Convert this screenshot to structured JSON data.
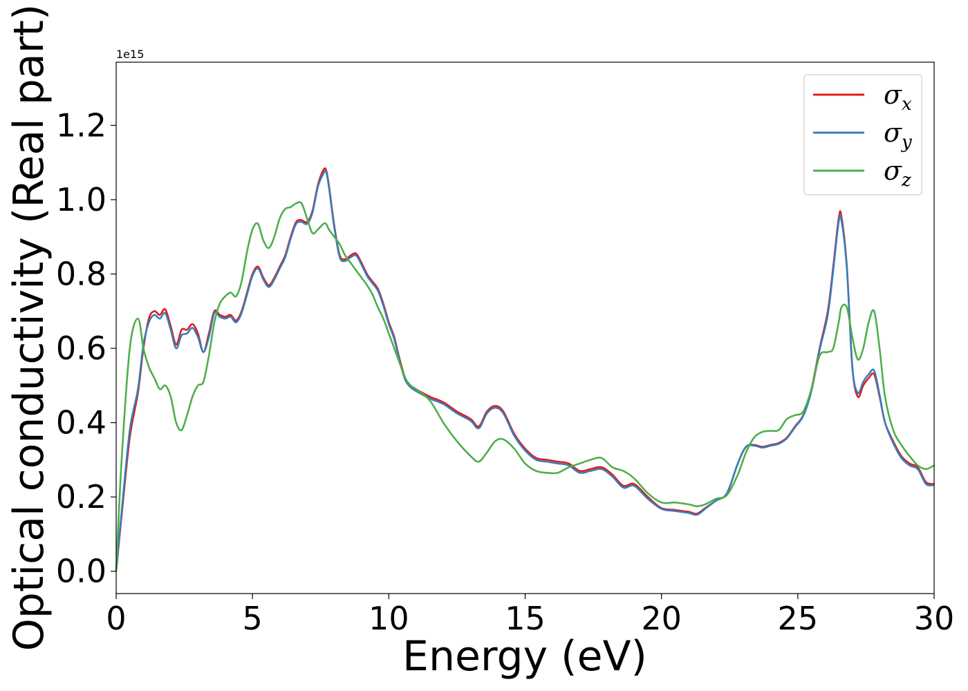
{
  "chart_data": {
    "type": "line",
    "title": "",
    "xlabel": "Energy (eV)",
    "ylabel": "Optical conductivity (Real part)",
    "offset_label": "1e15",
    "xlim": [
      0,
      30
    ],
    "ylim": [
      -0.06,
      1.37
    ],
    "x_ticks": [
      0,
      5,
      10,
      15,
      20,
      25,
      30
    ],
    "y_ticks": [
      0.0,
      0.2,
      0.4,
      0.6,
      0.8,
      1.0,
      1.2
    ],
    "y_tick_labels": [
      "0.0",
      "0.2",
      "0.4",
      "0.6",
      "0.8",
      "1.0",
      "1.2"
    ],
    "grid": false,
    "legend_position": "top-right",
    "x": [
      0,
      0.2,
      0.5,
      0.8,
      1.0,
      1.2,
      1.4,
      1.6,
      1.8,
      2.0,
      2.2,
      2.4,
      2.6,
      2.8,
      3.0,
      3.2,
      3.4,
      3.6,
      3.8,
      4.0,
      4.2,
      4.4,
      4.6,
      4.8,
      5.0,
      5.2,
      5.4,
      5.6,
      5.8,
      6.0,
      6.2,
      6.4,
      6.6,
      6.8,
      7.0,
      7.2,
      7.4,
      7.6,
      7.7,
      7.8,
      8.0,
      8.2,
      8.4,
      8.6,
      8.8,
      9.0,
      9.2,
      9.4,
      9.6,
      9.8,
      10.0,
      10.2,
      10.4,
      10.6,
      10.8,
      11.0,
      11.5,
      12.0,
      12.5,
      13.0,
      13.3,
      13.6,
      13.9,
      14.2,
      14.6,
      15.0,
      15.4,
      15.8,
      16.2,
      16.6,
      17.0,
      17.4,
      17.8,
      18.2,
      18.6,
      19.0,
      19.5,
      20.0,
      20.5,
      21.0,
      21.3,
      21.6,
      22.0,
      22.4,
      22.8,
      23.1,
      23.4,
      23.7,
      24.0,
      24.3,
      24.6,
      24.9,
      25.2,
      25.5,
      25.8,
      26.1,
      26.3,
      26.5,
      26.6,
      26.8,
      27.0,
      27.2,
      27.4,
      27.6,
      27.8,
      28.0,
      28.2,
      28.5,
      28.8,
      29.1,
      29.4,
      29.7,
      30.0
    ],
    "series": [
      {
        "name": "σx",
        "legend_symbol": "σ",
        "legend_subscript": "x",
        "color": "#e41a1c",
        "values": [
          0.0,
          0.15,
          0.36,
          0.48,
          0.6,
          0.68,
          0.7,
          0.69,
          0.705,
          0.66,
          0.61,
          0.65,
          0.65,
          0.665,
          0.64,
          0.59,
          0.64,
          0.7,
          0.69,
          0.685,
          0.69,
          0.675,
          0.7,
          0.75,
          0.8,
          0.82,
          0.79,
          0.77,
          0.79,
          0.82,
          0.85,
          0.9,
          0.94,
          0.945,
          0.94,
          0.97,
          1.04,
          1.08,
          1.08,
          1.04,
          0.93,
          0.85,
          0.84,
          0.85,
          0.855,
          0.83,
          0.8,
          0.78,
          0.76,
          0.72,
          0.67,
          0.63,
          0.57,
          0.52,
          0.5,
          0.49,
          0.47,
          0.455,
          0.43,
          0.41,
          0.39,
          0.43,
          0.445,
          0.43,
          0.37,
          0.33,
          0.305,
          0.3,
          0.295,
          0.29,
          0.27,
          0.275,
          0.28,
          0.26,
          0.23,
          0.235,
          0.2,
          0.17,
          0.165,
          0.16,
          0.155,
          0.17,
          0.19,
          0.21,
          0.29,
          0.335,
          0.34,
          0.335,
          0.34,
          0.345,
          0.36,
          0.39,
          0.42,
          0.49,
          0.6,
          0.7,
          0.82,
          0.95,
          0.955,
          0.82,
          0.55,
          0.47,
          0.5,
          0.52,
          0.53,
          0.47,
          0.4,
          0.35,
          0.31,
          0.29,
          0.28,
          0.24,
          0.235
        ]
      },
      {
        "name": "σy",
        "legend_symbol": "σ",
        "legend_subscript": "y",
        "color": "#377eb8",
        "values": [
          0.0,
          0.16,
          0.38,
          0.49,
          0.61,
          0.67,
          0.69,
          0.68,
          0.695,
          0.65,
          0.6,
          0.635,
          0.64,
          0.655,
          0.63,
          0.59,
          0.63,
          0.695,
          0.685,
          0.68,
          0.685,
          0.67,
          0.695,
          0.745,
          0.795,
          0.815,
          0.785,
          0.765,
          0.785,
          0.815,
          0.845,
          0.895,
          0.935,
          0.94,
          0.935,
          0.965,
          1.035,
          1.07,
          1.075,
          1.035,
          0.925,
          0.845,
          0.835,
          0.845,
          0.85,
          0.825,
          0.795,
          0.775,
          0.755,
          0.715,
          0.665,
          0.625,
          0.565,
          0.515,
          0.495,
          0.485,
          0.465,
          0.45,
          0.425,
          0.405,
          0.385,
          0.425,
          0.44,
          0.425,
          0.365,
          0.325,
          0.3,
          0.295,
          0.29,
          0.285,
          0.265,
          0.27,
          0.275,
          0.255,
          0.225,
          0.23,
          0.195,
          0.168,
          0.162,
          0.157,
          0.152,
          0.168,
          0.19,
          0.21,
          0.29,
          0.335,
          0.338,
          0.333,
          0.338,
          0.343,
          0.358,
          0.388,
          0.418,
          0.485,
          0.595,
          0.69,
          0.81,
          0.94,
          0.945,
          0.815,
          0.55,
          0.48,
          0.51,
          0.53,
          0.54,
          0.475,
          0.4,
          0.345,
          0.305,
          0.285,
          0.275,
          0.235,
          0.232
        ]
      },
      {
        "name": "σz",
        "legend_symbol": "σ",
        "legend_subscript": "z",
        "color": "#4daf4a",
        "values": [
          0.0,
          0.3,
          0.6,
          0.68,
          0.6,
          0.55,
          0.52,
          0.49,
          0.5,
          0.47,
          0.4,
          0.38,
          0.42,
          0.47,
          0.5,
          0.51,
          0.58,
          0.67,
          0.72,
          0.74,
          0.75,
          0.74,
          0.78,
          0.86,
          0.92,
          0.935,
          0.89,
          0.87,
          0.9,
          0.95,
          0.975,
          0.98,
          0.99,
          0.99,
          0.95,
          0.91,
          0.92,
          0.935,
          0.935,
          0.92,
          0.9,
          0.88,
          0.85,
          0.83,
          0.81,
          0.79,
          0.77,
          0.745,
          0.71,
          0.68,
          0.64,
          0.6,
          0.56,
          0.52,
          0.5,
          0.49,
          0.46,
          0.4,
          0.35,
          0.31,
          0.295,
          0.32,
          0.35,
          0.355,
          0.33,
          0.29,
          0.27,
          0.265,
          0.265,
          0.28,
          0.29,
          0.3,
          0.305,
          0.28,
          0.27,
          0.25,
          0.21,
          0.185,
          0.185,
          0.18,
          0.175,
          0.18,
          0.195,
          0.205,
          0.26,
          0.32,
          0.36,
          0.375,
          0.378,
          0.38,
          0.41,
          0.42,
          0.43,
          0.49,
          0.58,
          0.59,
          0.6,
          0.67,
          0.71,
          0.71,
          0.63,
          0.57,
          0.6,
          0.67,
          0.7,
          0.6,
          0.47,
          0.38,
          0.34,
          0.31,
          0.285,
          0.275,
          0.285
        ]
      }
    ]
  }
}
